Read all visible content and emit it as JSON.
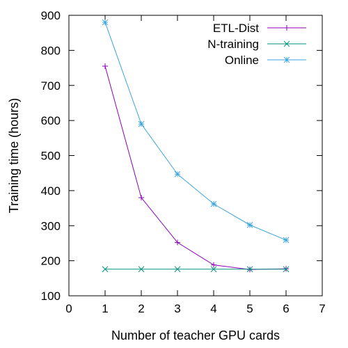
{
  "chart_data": {
    "type": "line",
    "title": "",
    "xlabel": "Number of teacher GPU cards",
    "ylabel": "Training time (hours)",
    "xlim": [
      0,
      7
    ],
    "ylim": [
      100,
      900
    ],
    "xticks": [
      0,
      1,
      2,
      3,
      4,
      5,
      6,
      7
    ],
    "yticks": [
      100,
      200,
      300,
      400,
      500,
      600,
      700,
      800,
      900
    ],
    "x_tick_labels": [
      "0",
      "1",
      "2",
      "3",
      "4",
      "5",
      "6",
      "7"
    ],
    "y_tick_labels": [
      "100",
      "200",
      "300",
      "400",
      "500",
      "600",
      "700",
      "800",
      "900"
    ],
    "grid": false,
    "legend_position": "top-right",
    "series": [
      {
        "name": "ETL-Dist",
        "marker": "plus",
        "color": "#8b00b8",
        "x": [
          1,
          2,
          3,
          4,
          5,
          6
        ],
        "y": [
          755,
          380,
          252,
          188,
          175,
          177
        ]
      },
      {
        "name": "N-training",
        "marker": "cross",
        "color": "#00917a",
        "x": [
          1,
          2,
          3,
          4,
          5,
          6
        ],
        "y": [
          176,
          176,
          176,
          176,
          176,
          176
        ]
      },
      {
        "name": "Online",
        "marker": "star",
        "color": "#3aa5dc",
        "x": [
          1,
          2,
          3,
          4,
          5,
          6
        ],
        "y": [
          880,
          590,
          447,
          362,
          302,
          259
        ]
      }
    ]
  }
}
